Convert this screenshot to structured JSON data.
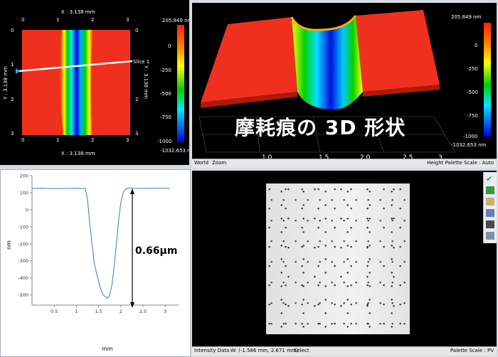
{
  "top_left": {
    "x_label_top": "X : 3.138 mm",
    "x_label_bottom": "X : 3.138 mm",
    "y_label_left": "Y : 3.138 mm",
    "y_label_right": "Y : 3.138 mm",
    "slice_label": "Slice 1",
    "x_ticks": [
      "0",
      "1",
      "2",
      "3"
    ],
    "y_ticks": [
      "0",
      "1",
      "2",
      "3"
    ],
    "colorbar_max": "205.849 nm",
    "colorbar_min": "-1032.653 nm",
    "colorbar_ticks": [
      "0",
      "-250",
      "-500",
      "-750",
      "-1000"
    ],
    "colors": {
      "red": "#ff2a1a",
      "yellow": "#ffff00",
      "green": "#00c800",
      "cyan": "#00e8ff",
      "blue": "#0000e8"
    }
  },
  "top_right": {
    "colorbar_max": "205.849 nm",
    "colorbar_min": "-1032.653 nm",
    "colorbar_ticks": [
      "0",
      "-250",
      "-500",
      "-750",
      "-1000"
    ],
    "axis_ticks": [
      "1.0",
      "1.5",
      "2.0",
      "2.5",
      "3"
    ],
    "overlay_title": "摩耗痕の 3D 形状",
    "status_left": [
      "World",
      "Zoom"
    ],
    "status_right": "Height Palette Scale : Auto"
  },
  "bottom_left": {
    "chart_data": {
      "type": "line",
      "x": [
        0.0,
        0.2,
        0.5,
        0.8,
        1.0,
        1.2,
        1.25,
        1.3,
        1.35,
        1.4,
        1.45,
        1.5,
        1.55,
        1.6,
        1.65,
        1.7,
        1.75,
        1.8,
        1.85,
        1.9,
        1.95,
        2.0,
        2.05,
        2.1,
        2.15,
        2.2,
        2.3,
        2.5,
        2.8,
        3.1
      ],
      "y": [
        125,
        126,
        124,
        125,
        126,
        125,
        60,
        -80,
        -200,
        -310,
        -370,
        -420,
        -470,
        -500,
        -510,
        -520,
        -500,
        -440,
        -330,
        -200,
        -60,
        40,
        100,
        120,
        127,
        128,
        126,
        125,
        126,
        126
      ],
      "title": "",
      "xlabel": "mm",
      "ylabel": "nm",
      "xlim": [
        0,
        3.3
      ],
      "ylim": [
        -560,
        200
      ],
      "x_ticks": [
        "0.5",
        "1",
        "1.5",
        "2",
        "2.5",
        "3"
      ],
      "y_ticks": [
        "200",
        "100",
        "0",
        "-100",
        "-200",
        "-300",
        "-400",
        "-500"
      ],
      "annotation": "0.66μm",
      "line_color": "#3a78c8",
      "grid": false
    }
  },
  "bottom_right": {
    "status_left": [
      "Intensity Data",
      "W: (-1.586 mm, 2.671 mm)",
      "Select"
    ],
    "status_right": "Palette Scale : PV"
  }
}
